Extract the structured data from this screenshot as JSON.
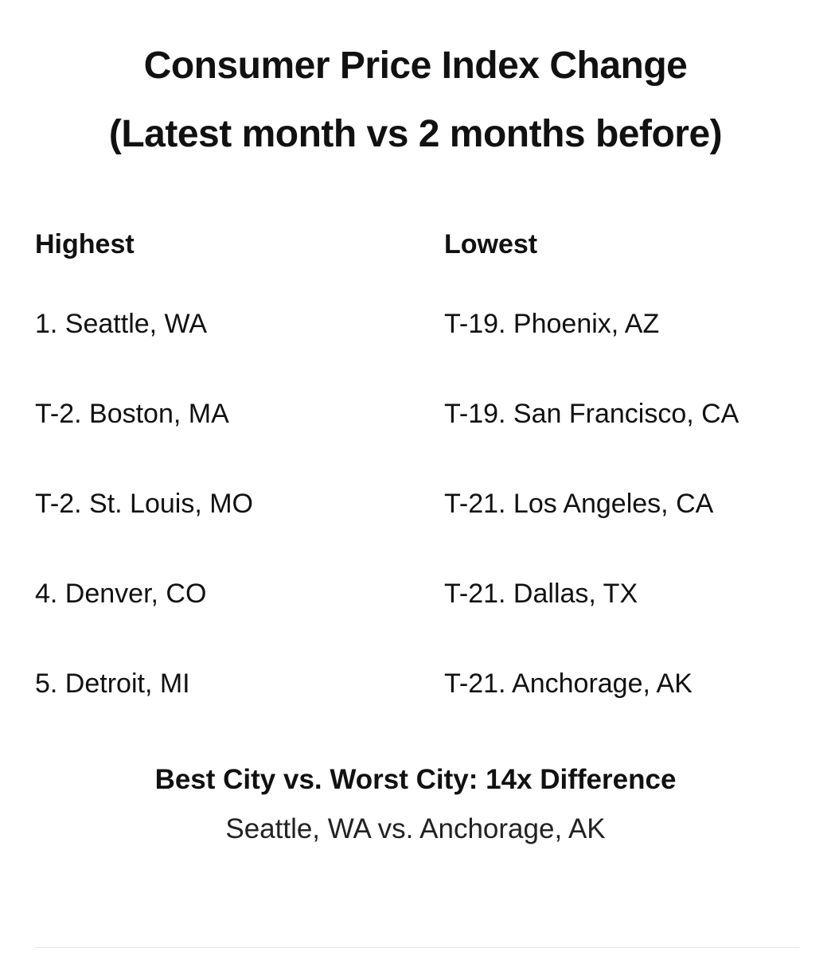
{
  "title": {
    "line1": "Consumer Price Index Change",
    "line2": "(Latest month vs 2 months before)"
  },
  "highest": {
    "heading": "Highest",
    "items": [
      "1. Seattle, WA",
      "T-2. Boston, MA",
      "T-2. St. Louis, MO",
      "4. Denver, CO",
      "5. Detroit, MI"
    ]
  },
  "lowest": {
    "heading": "Lowest",
    "items": [
      "T-19. Phoenix, AZ",
      "T-19. San Francisco, CA",
      "T-21. Los Angeles, CA",
      "T-21. Dallas, TX",
      "T-21. Anchorage, AK"
    ]
  },
  "summary": {
    "heading": "Best City vs. Worst City: 14x Difference",
    "subtitle": "Seattle, WA vs. Anchorage, AK"
  }
}
